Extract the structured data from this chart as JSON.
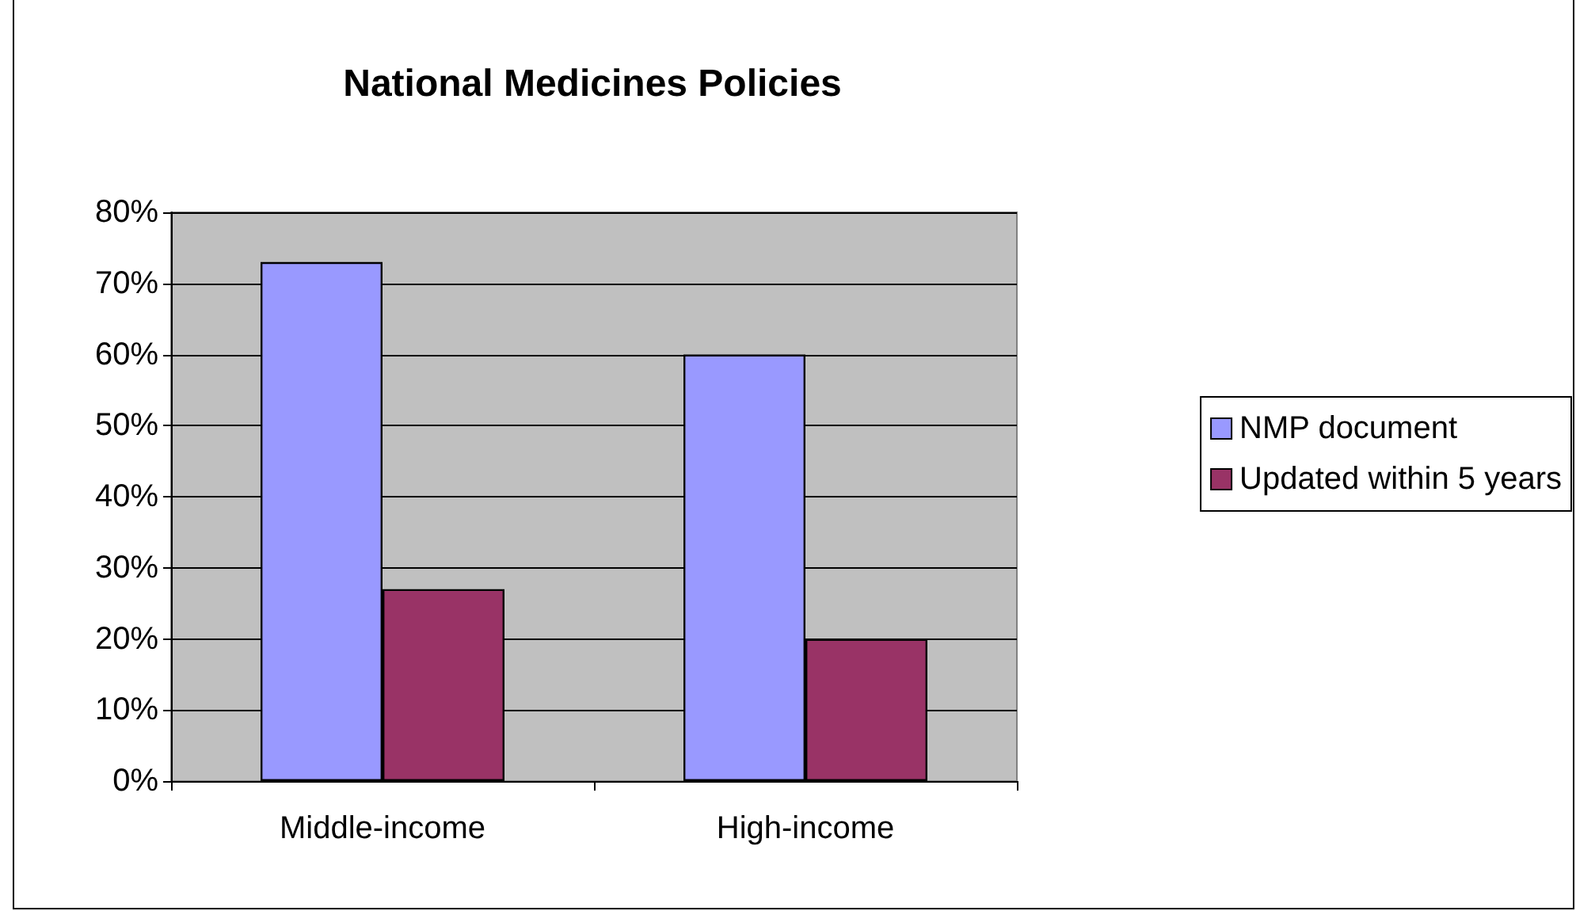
{
  "chart_data": {
    "type": "bar",
    "title": "National Medicines Policies",
    "categories": [
      "Middle-income",
      "High-income"
    ],
    "series": [
      {
        "name": "NMP document",
        "color": "#9999ff",
        "values": [
          73,
          60
        ]
      },
      {
        "name": "Updated within 5 years",
        "color": "#993366",
        "values": [
          27,
          20
        ]
      }
    ],
    "ylim": [
      0,
      80
    ],
    "yticks": [
      {
        "value": 0,
        "label": "0%"
      },
      {
        "value": 10,
        "label": "10%"
      },
      {
        "value": 20,
        "label": "20%"
      },
      {
        "value": 30,
        "label": "30%"
      },
      {
        "value": 40,
        "label": "40%"
      },
      {
        "value": 50,
        "label": "50%"
      },
      {
        "value": 60,
        "label": "60%"
      },
      {
        "value": 70,
        "label": "70%"
      },
      {
        "value": 80,
        "label": "80%"
      }
    ],
    "grid": "y",
    "legend": "right"
  }
}
